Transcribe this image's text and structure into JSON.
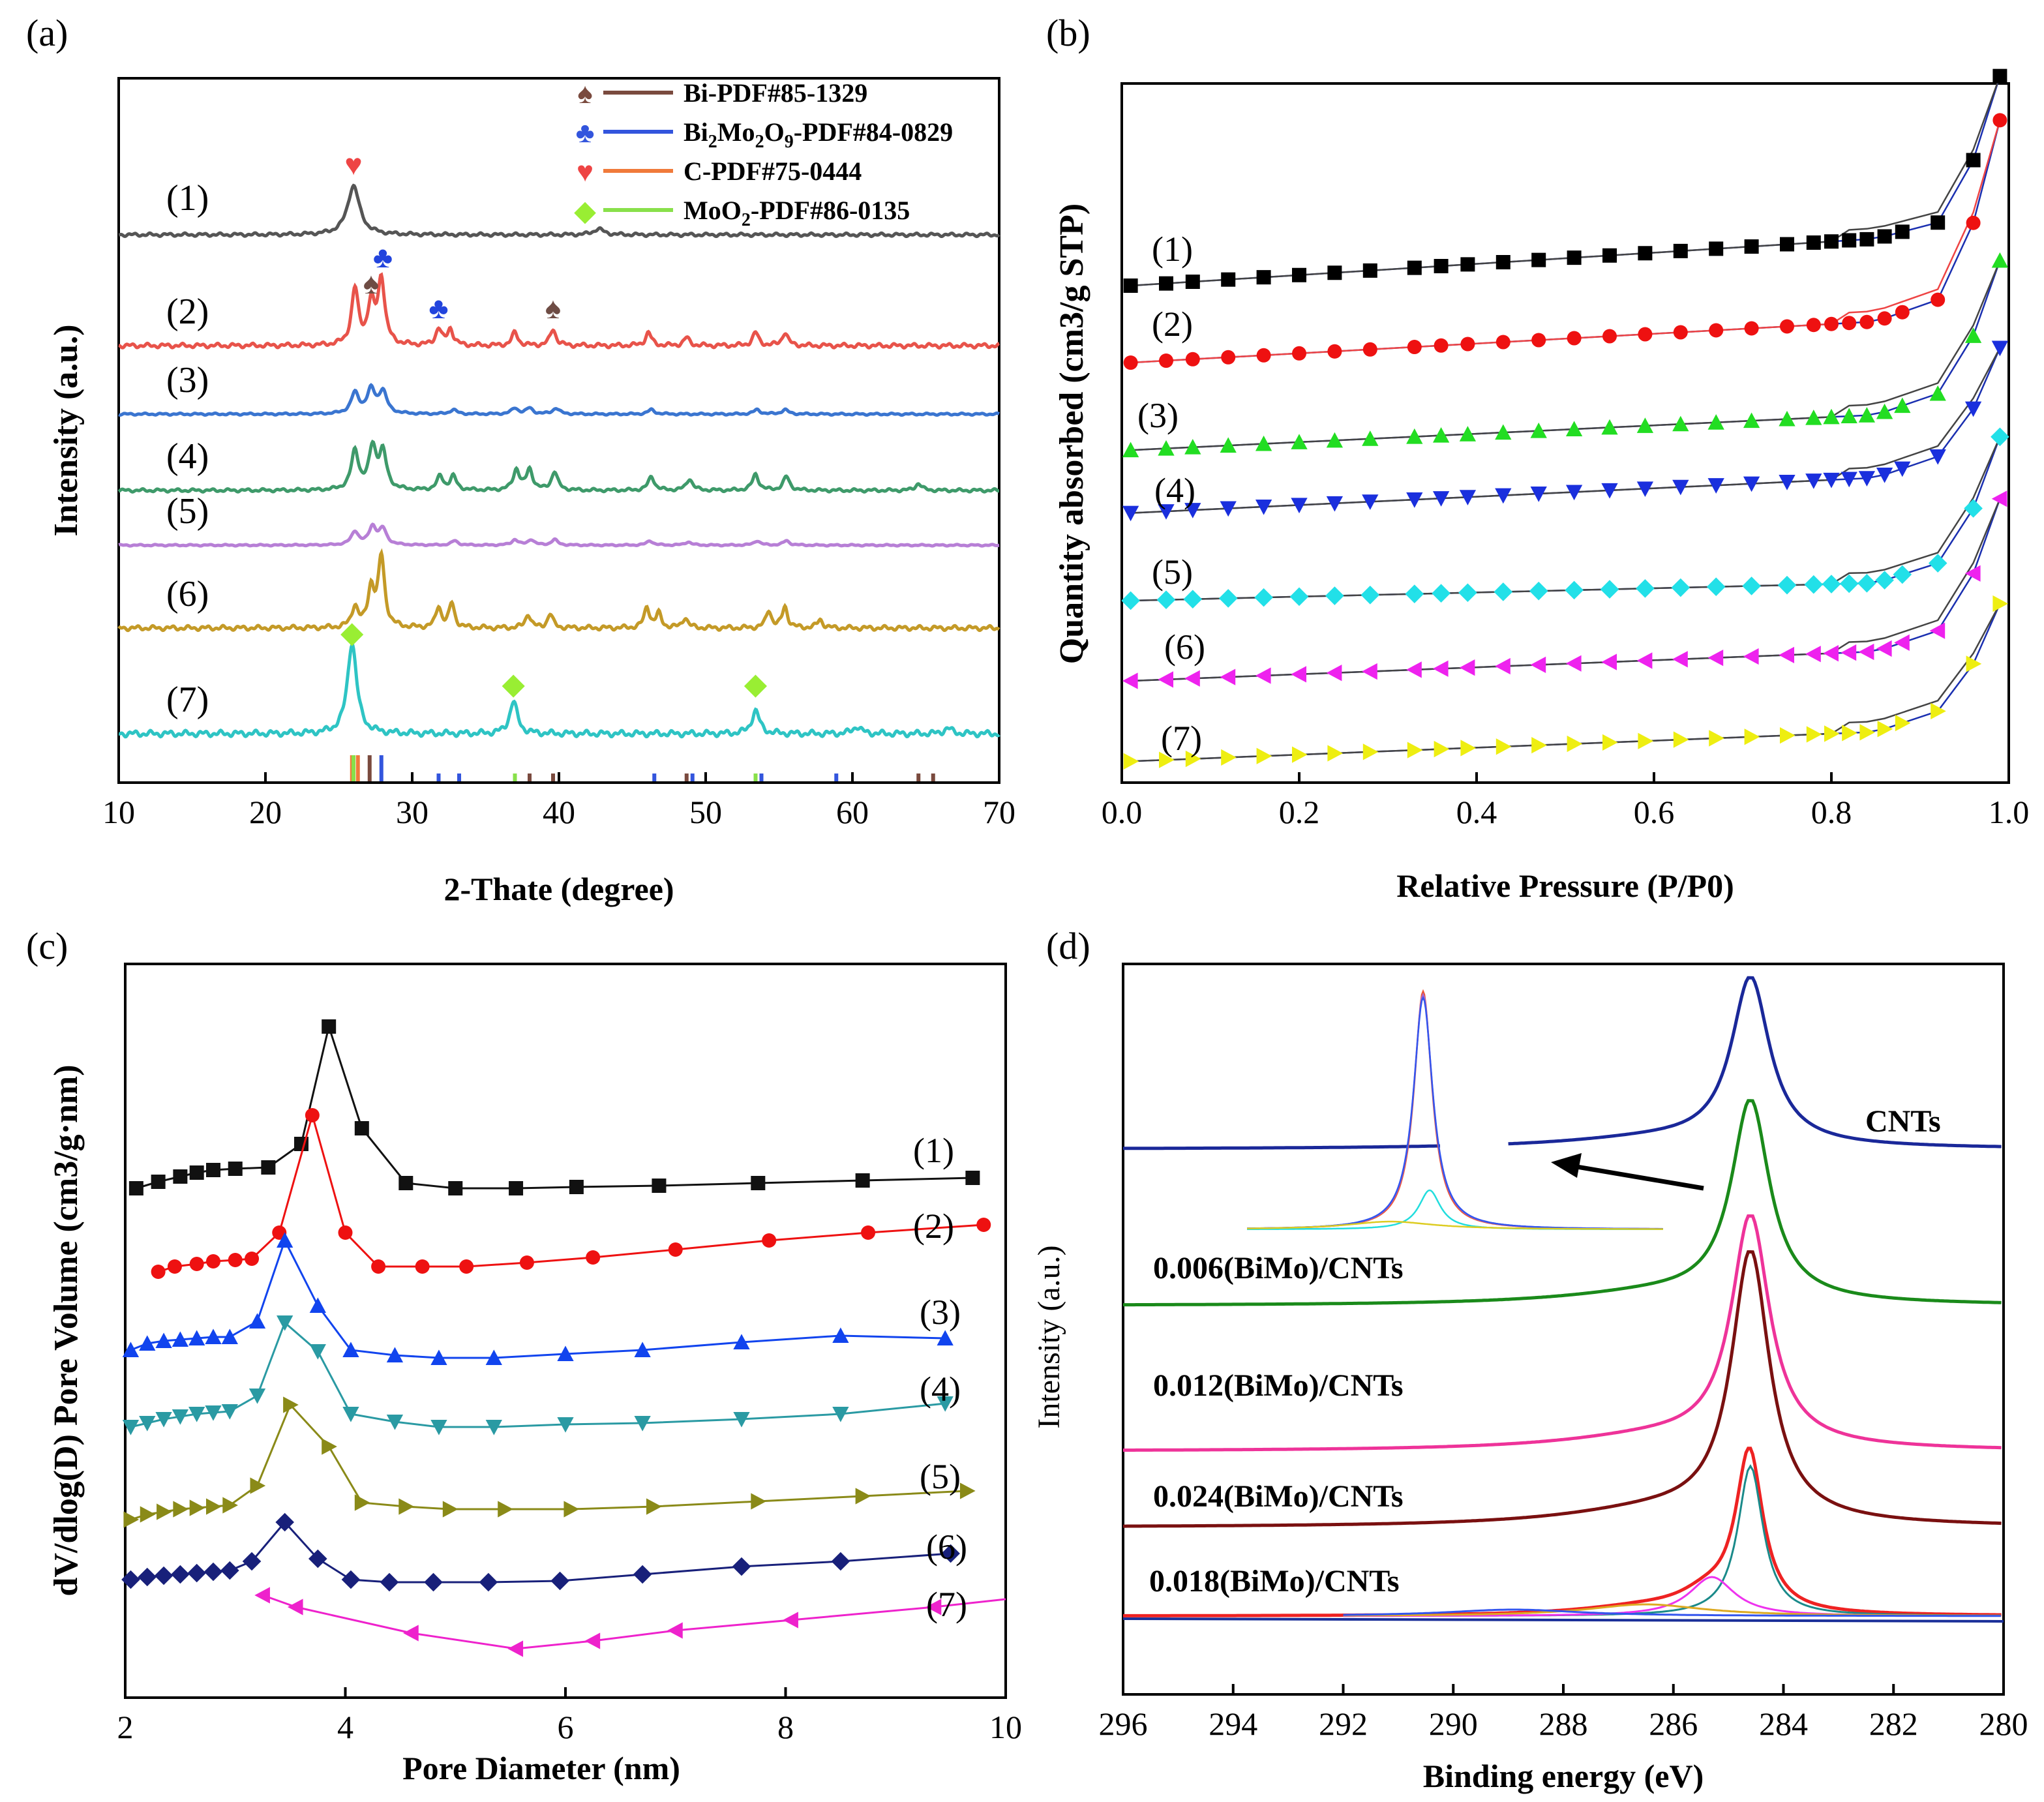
{
  "chart_data": [
    {
      "panel_label": "(a)",
      "type": "line",
      "xlabel": "2-Thate (degree)",
      "ylabel": "Intensity (a.u.)",
      "xlim": [
        10,
        70
      ],
      "xticks": [
        10,
        20,
        30,
        40,
        50,
        60,
        70
      ],
      "series": [
        {
          "name": "(1)",
          "color": "#555555",
          "peaks": [
            [
              26.0,
              1.0
            ],
            [
              42.7,
              0.12
            ]
          ]
        },
        {
          "name": "(2)",
          "color": "#e8534a",
          "peaks": [
            [
              26.1,
              0.85
            ],
            [
              27.2,
              0.6
            ],
            [
              27.9,
              1.0
            ],
            [
              31.8,
              0.25
            ],
            [
              32.6,
              0.25
            ],
            [
              37.0,
              0.2
            ],
            [
              39.6,
              0.25
            ],
            [
              46.1,
              0.2
            ],
            [
              48.7,
              0.12
            ],
            [
              53.4,
              0.2
            ],
            [
              55.4,
              0.2
            ]
          ]
        },
        {
          "name": "(3)",
          "color": "#3a75d0",
          "peaks": [
            [
              26.1,
              0.7
            ],
            [
              27.2,
              0.8
            ],
            [
              28.0,
              0.75
            ],
            [
              32.8,
              0.15
            ],
            [
              37.0,
              0.2
            ],
            [
              38.0,
              0.2
            ],
            [
              39.8,
              0.2
            ],
            [
              46.3,
              0.15
            ],
            [
              53.5,
              0.15
            ],
            [
              55.4,
              0.15
            ]
          ]
        },
        {
          "name": "(4)",
          "color": "#3e9a6a",
          "peaks": [
            [
              26.1,
              0.85
            ],
            [
              27.3,
              0.9
            ],
            [
              28.0,
              0.8
            ],
            [
              31.9,
              0.3
            ],
            [
              32.8,
              0.3
            ],
            [
              37.1,
              0.45
            ],
            [
              38.0,
              0.45
            ],
            [
              39.7,
              0.4
            ],
            [
              46.3,
              0.3
            ],
            [
              48.9,
              0.25
            ],
            [
              53.4,
              0.35
            ],
            [
              55.5,
              0.3
            ],
            [
              64.5,
              0.15
            ]
          ]
        },
        {
          "name": "(5)",
          "color": "#b77fd6",
          "peaks": [
            [
              26.1,
              0.6
            ],
            [
              27.3,
              0.8
            ],
            [
              28.0,
              0.7
            ],
            [
              32.9,
              0.2
            ],
            [
              37.0,
              0.25
            ],
            [
              38.1,
              0.25
            ],
            [
              39.7,
              0.25
            ],
            [
              46.2,
              0.2
            ],
            [
              48.8,
              0.15
            ],
            [
              53.5,
              0.2
            ],
            [
              55.5,
              0.2
            ]
          ]
        },
        {
          "name": "(6)",
          "color": "#c49a27",
          "peaks": [
            [
              26.1,
              0.3
            ],
            [
              27.2,
              0.55
            ],
            [
              27.9,
              1.0
            ],
            [
              31.8,
              0.3
            ],
            [
              32.7,
              0.35
            ],
            [
              37.9,
              0.2
            ],
            [
              39.4,
              0.2
            ],
            [
              46.0,
              0.3
            ],
            [
              46.8,
              0.2
            ],
            [
              48.6,
              0.15
            ],
            [
              54.3,
              0.25
            ],
            [
              55.4,
              0.3
            ],
            [
              57.8,
              0.12
            ]
          ]
        },
        {
          "name": "(7)",
          "color": "#2ec4c4",
          "peaks": [
            [
              25.9,
              1.0
            ],
            [
              36.9,
              0.35
            ],
            [
              53.4,
              0.25
            ],
            [
              60.3,
              0.08
            ],
            [
              66.5,
              0.06
            ]
          ]
        }
      ],
      "legend": [
        {
          "label": "Bi-PDF#85-1329",
          "color": "#7a4a3e",
          "symbol": "♠"
        },
        {
          "label": "Bi2Mo2O9-PDF#84-0829",
          "color": "#3355dd",
          "symbol": "♣"
        },
        {
          "label": "C-PDF#75-0444",
          "color": "#f07a3a",
          "symbol": "♥"
        },
        {
          "label": "MoO2-PDF#86-0135",
          "color": "#88e04a",
          "symbol": "◆"
        }
      ],
      "reference_lines": [
        {
          "phase": "C",
          "x": [
            25.9,
            26.3
          ]
        },
        {
          "phase": "MoO2",
          "x": [
            26.0,
            37.0,
            53.4
          ]
        },
        {
          "phase": "Bi",
          "x": [
            27.1,
            38.0,
            39.6,
            48.7,
            64.5,
            65.5
          ]
        },
        {
          "phase": "Bi2Mo2O9",
          "x": [
            27.9,
            31.8,
            33.2,
            46.5,
            49.1,
            53.8,
            58.9
          ]
        }
      ],
      "annotations": [
        {
          "symbol": "♥",
          "x": 26.0,
          "trace": "(1)"
        },
        {
          "symbol": "♠",
          "x": 27.2,
          "trace": "(2)"
        },
        {
          "symbol": "♣",
          "x": 28.0,
          "trace": "(2)"
        },
        {
          "symbol": "♣",
          "x": 31.8,
          "trace": "(2)"
        },
        {
          "symbol": "♠",
          "x": 39.6,
          "trace": "(2)"
        },
        {
          "symbol": "◆",
          "x": 25.9,
          "trace": "(7)"
        },
        {
          "symbol": "◆",
          "x": 36.9,
          "trace": "(7)"
        },
        {
          "symbol": "◆",
          "x": 53.4,
          "trace": "(7)"
        }
      ]
    },
    {
      "panel_label": "(b)",
      "type": "scatter",
      "xlabel": "Relative Pressure (P/P0)",
      "ylabel": "Quantity absorbed (cm3/g STP)",
      "xlim": [
        0.0,
        1.0
      ],
      "xticks": [
        "0.0",
        "0.2",
        "0.4",
        "0.6",
        "0.8",
        "1.0"
      ],
      "ylim": [
        0,
        100
      ],
      "series": [
        {
          "name": "(1)",
          "color": "#000000",
          "marker": "square",
          "start": 71,
          "slope": 8,
          "end_rise": 2,
          "top": 99
        },
        {
          "name": "(2)",
          "color": "#ee1111",
          "marker": "circle",
          "start": 60,
          "slope": 7,
          "end_rise": 3,
          "top": 92
        },
        {
          "name": "(3)",
          "color": "#22dd22",
          "marker": "triangle-up",
          "start": 47.5,
          "slope": 6,
          "end_rise": 3,
          "top": 72
        },
        {
          "name": "(4)",
          "color": "#1a2fdd",
          "marker": "triangle-down",
          "start": 38.5,
          "slope": 6,
          "end_rise": 3,
          "top": 59.5
        },
        {
          "name": "(5)",
          "color": "#22e0e8",
          "marker": "diamond",
          "start": 26,
          "slope": 3,
          "end_rise": 3,
          "top": 47
        },
        {
          "name": "(6)",
          "color": "#ee22ee",
          "marker": "triangle-left",
          "start": 14.5,
          "slope": 5,
          "end_rise": 3,
          "top": 38
        },
        {
          "name": "(7)",
          "color": "#eeee11",
          "marker": "triangle-right",
          "start": 3,
          "slope": 5,
          "end_rise": 3,
          "top": 23
        }
      ]
    },
    {
      "panel_label": "(c)",
      "type": "line",
      "xlabel": "Pore Diameter (nm)",
      "ylabel": "dV/dlog(D) Pore Volume (cm3/g·nm)",
      "xlim": [
        2,
        10
      ],
      "xticks": [
        2,
        4,
        6,
        8,
        10
      ],
      "series": [
        {
          "name": "(1)",
          "color": "#111111",
          "marker": "square",
          "x": [
            2.1,
            2.3,
            2.5,
            2.65,
            2.8,
            3.0,
            3.3,
            3.6,
            3.85,
            4.15,
            4.55,
            5.0,
            5.55,
            6.1,
            6.85,
            7.75,
            8.7,
            9.7
          ],
          "y": [
            0,
            0.25,
            0.45,
            0.6,
            0.7,
            0.75,
            0.8,
            1.7,
            6.2,
            2.3,
            0.2,
            0,
            0,
            0.05,
            0.1,
            0.2,
            0.3,
            0.4
          ]
        },
        {
          "name": "(2)",
          "color": "#ee1111",
          "marker": "circle",
          "x": [
            2.3,
            2.45,
            2.65,
            2.8,
            3.0,
            3.15,
            3.4,
            3.7,
            4.0,
            4.3,
            4.7,
            5.1,
            5.65,
            6.25,
            7.0,
            7.85,
            8.75,
            9.8
          ],
          "y": [
            0,
            0.2,
            0.3,
            0.4,
            0.45,
            0.5,
            1.5,
            6.0,
            1.5,
            0.2,
            0.2,
            0.2,
            0.35,
            0.55,
            0.85,
            1.2,
            1.5,
            1.8
          ]
        },
        {
          "name": "(3)",
          "color": "#1144ee",
          "marker": "triangle-up",
          "x": [
            2.05,
            2.2,
            2.35,
            2.5,
            2.65,
            2.8,
            2.95,
            3.2,
            3.45,
            3.75,
            4.05,
            4.45,
            4.85,
            5.35,
            6.0,
            6.7,
            7.6,
            8.5,
            9.45
          ],
          "y": [
            0.3,
            0.55,
            0.65,
            0.7,
            0.75,
            0.8,
            0.8,
            1.4,
            4.5,
            2.0,
            0.3,
            0.1,
            0,
            0,
            0.15,
            0.3,
            0.6,
            0.85,
            0.75
          ]
        },
        {
          "name": "(4)",
          "color": "#2a9aa3",
          "marker": "triangle-down",
          "x": [
            2.05,
            2.2,
            2.35,
            2.5,
            2.65,
            2.8,
            2.95,
            3.2,
            3.45,
            3.75,
            4.05,
            4.45,
            4.85,
            5.35,
            6.0,
            6.7,
            7.6,
            8.5,
            9.45
          ],
          "y": [
            0.3,
            0.45,
            0.6,
            0.7,
            0.8,
            0.85,
            0.9,
            1.5,
            4.3,
            3.2,
            0.8,
            0.5,
            0.3,
            0.3,
            0.4,
            0.45,
            0.6,
            0.8,
            1.2
          ]
        },
        {
          "name": "(5)",
          "color": "#8a8a18",
          "marker": "triangle-right",
          "x": [
            2.05,
            2.2,
            2.35,
            2.5,
            2.65,
            2.8,
            2.95,
            3.2,
            3.5,
            3.85,
            4.15,
            4.55,
            4.95,
            5.45,
            6.05,
            6.8,
            7.75,
            8.7,
            9.65
          ],
          "y": [
            0.1,
            0.3,
            0.4,
            0.5,
            0.55,
            0.6,
            0.65,
            1.4,
            4.5,
            2.9,
            0.75,
            0.6,
            0.5,
            0.5,
            0.5,
            0.6,
            0.8,
            1.0,
            1.2
          ]
        },
        {
          "name": "(6)",
          "color": "#18207a",
          "marker": "diamond",
          "x": [
            2.05,
            2.2,
            2.35,
            2.5,
            2.65,
            2.8,
            2.95,
            3.15,
            3.45,
            3.75,
            4.05,
            4.4,
            4.8,
            5.3,
            5.95,
            6.7,
            7.6,
            8.5,
            9.5
          ],
          "y": [
            0.1,
            0.2,
            0.25,
            0.3,
            0.35,
            0.4,
            0.45,
            0.8,
            2.3,
            0.9,
            0.1,
            0,
            0,
            0,
            0.05,
            0.3,
            0.6,
            0.8,
            1.1
          ]
        },
        {
          "name": "(7)",
          "color": "#ee22cc",
          "marker": "triangle-left",
          "x": [
            3.25,
            3.55,
            4.6,
            5.55,
            6.25,
            7.0,
            8.05,
            9.35,
            10.0
          ],
          "y": [
            2.05,
            1.6,
            0.6,
            0,
            0.3,
            0.7,
            1.1,
            1.6,
            1.9
          ]
        }
      ]
    },
    {
      "panel_label": "(d)",
      "type": "line",
      "xlabel": "Binding energy (eV)",
      "ylabel": "Intensity (a.u.)",
      "xlim": [
        296,
        280
      ],
      "xticks": [
        296,
        294,
        292,
        290,
        288,
        286,
        284,
        282,
        280
      ],
      "series": [
        {
          "name": "CNTs",
          "color": "#1a2899",
          "peak_center": 284.6,
          "label": "CNTs"
        },
        {
          "name": "0.006(BiMo)/CNTs",
          "color": "#1a8a1a",
          "peak_center": 284.6,
          "label": "0.006(BiMo)/CNTs"
        },
        {
          "name": "0.012(BiMo)/CNTs",
          "color": "#ee3399",
          "peak_center": 284.6,
          "label": "0.012(BiMo)/CNTs"
        },
        {
          "name": "0.024(BiMo)/CNTs",
          "color": "#7a1010",
          "peak_center": 284.6,
          "label": "0.024(BiMo)/CNTs"
        },
        {
          "name": "0.018(BiMo)/CNTs",
          "color": "#ee2222",
          "peak_center": 284.6,
          "label": "0.018(BiMo)/CNTs",
          "fit_components": [
            284.6,
            285.3,
            286.5,
            288.9
          ]
        }
      ],
      "inset": {
        "description_symbol": "arrow",
        "peak_center": 284.6
      }
    }
  ]
}
